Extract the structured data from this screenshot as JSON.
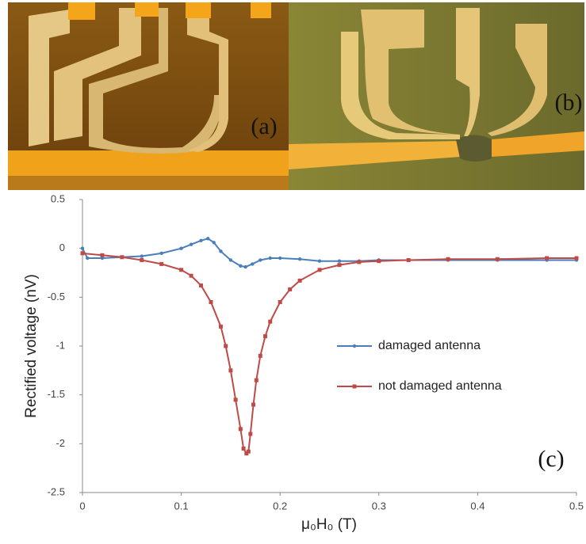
{
  "panels": {
    "a": "(a)",
    "b": "(b)"
  },
  "chart_data": {
    "type": "line",
    "panel_label": "(c)",
    "x_label": "μ₀H₀ (T)",
    "y_label": "Rectified voltage (nV)",
    "xlim": [
      0,
      0.5
    ],
    "ylim": [
      -2.5,
      0.5
    ],
    "xticks": [
      0,
      0.1,
      0.2,
      0.3,
      0.4,
      0.5
    ],
    "yticks": [
      -2.5,
      -2,
      -1.5,
      -1,
      -0.5,
      0,
      0.5
    ],
    "grid": false,
    "legend_position": "center-right",
    "series": [
      {
        "name": "damaged antenna",
        "color": "#4a7ebb",
        "marker": "circle",
        "x": [
          0,
          0.005,
          0.02,
          0.04,
          0.06,
          0.08,
          0.1,
          0.11,
          0.12,
          0.127,
          0.133,
          0.14,
          0.15,
          0.16,
          0.165,
          0.172,
          0.18,
          0.19,
          0.2,
          0.22,
          0.24,
          0.26,
          0.28,
          0.3,
          0.33,
          0.37,
          0.42,
          0.47,
          0.5
        ],
        "values": [
          0,
          -0.1,
          -0.1,
          -0.09,
          -0.08,
          -0.05,
          0,
          0.04,
          0.08,
          0.1,
          0.06,
          -0.03,
          -0.12,
          -0.18,
          -0.19,
          -0.16,
          -0.12,
          -0.1,
          -0.1,
          -0.11,
          -0.13,
          -0.13,
          -0.13,
          -0.12,
          -0.12,
          -0.12,
          -0.12,
          -0.12,
          -0.12
        ]
      },
      {
        "name": "not damaged antenna",
        "color": "#be4b48",
        "marker": "square",
        "x": [
          0,
          0.02,
          0.04,
          0.06,
          0.08,
          0.1,
          0.11,
          0.12,
          0.13,
          0.14,
          0.145,
          0.15,
          0.155,
          0.16,
          0.163,
          0.166,
          0.168,
          0.17,
          0.173,
          0.176,
          0.18,
          0.185,
          0.19,
          0.2,
          0.21,
          0.22,
          0.24,
          0.26,
          0.28,
          0.3,
          0.33,
          0.37,
          0.42,
          0.47,
          0.5
        ],
        "values": [
          -0.05,
          -0.07,
          -0.09,
          -0.12,
          -0.16,
          -0.22,
          -0.28,
          -0.38,
          -0.55,
          -0.8,
          -1.0,
          -1.25,
          -1.55,
          -1.85,
          -2.05,
          -2.1,
          -2.08,
          -1.9,
          -1.6,
          -1.35,
          -1.1,
          -0.9,
          -0.75,
          -0.55,
          -0.42,
          -0.33,
          -0.22,
          -0.17,
          -0.14,
          -0.13,
          -0.12,
          -0.11,
          -0.11,
          -0.1,
          -0.1
        ]
      }
    ]
  }
}
